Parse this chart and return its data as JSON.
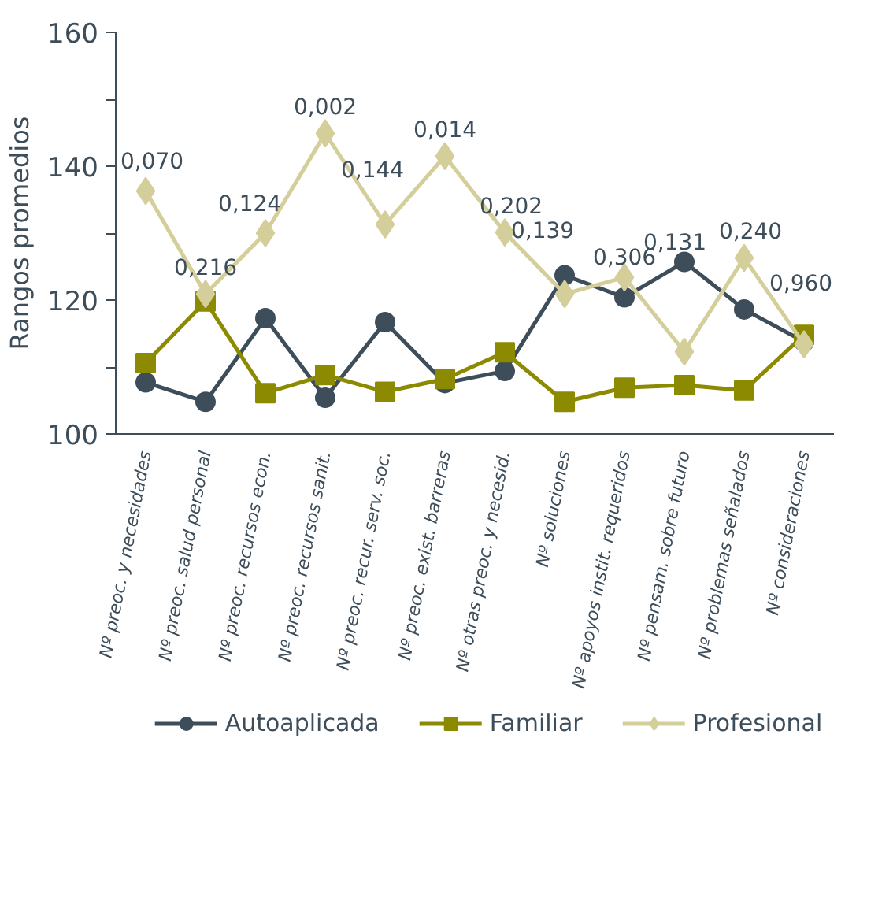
{
  "chart_data": {
    "type": "line",
    "ylabel": "Rangos promedios",
    "categories": [
      "Nº preoc. y necesidades",
      "Nº preoc. salud personal",
      "Nº preoc. recursos econ.",
      "Nº preoc. recursos sanit.",
      "Nº preoc. recur. serv. soc.",
      "Nº preoc. exist. barreras",
      "Nº otras preoc. y necesid.",
      "Nº soluciones",
      "Nº apoyos instit. requeridos",
      "Nº pensam. sobre futuro",
      "Nº problemas señalados",
      "Nº consideraciones"
    ],
    "series": [
      {
        "name": "Autoaplicada",
        "color": "#3d4d5a",
        "marker": "circle",
        "values": [
          107.7,
          104.8,
          117.3,
          105.4,
          116.7,
          107.6,
          109.4,
          123.7,
          120.4,
          125.7,
          118.6,
          113.8
        ]
      },
      {
        "name": "Familiar",
        "color": "#8c8a00",
        "marker": "square",
        "values": [
          110.6,
          119.8,
          106.1,
          108.8,
          106.3,
          108.2,
          112.2,
          104.8,
          106.9,
          107.3,
          106.5,
          114.8
        ]
      },
      {
        "name": "Profesional",
        "color": "#d4cf9a",
        "marker": "diamond",
        "values": [
          136.3,
          120.9,
          130.0,
          144.9,
          131.3,
          141.5,
          130.1,
          120.9,
          123.4,
          112.3,
          126.3,
          113.4
        ]
      }
    ],
    "ylim": [
      100,
      160
    ],
    "yticks": [
      100,
      {
        "value": 110,
        "label": null
      },
      120,
      {
        "value": 130,
        "label": null
      },
      140,
      {
        "value": 150,
        "label": null
      },
      160
    ],
    "grid": false,
    "legend": "bottom",
    "line_style": "solid",
    "annotations": [
      "0,070",
      "0,216",
      "0,124",
      "0,002",
      "0,144",
      "0,014",
      "0,202",
      "0,139",
      "0,306",
      "0,131",
      "0,240",
      "0,960"
    ]
  }
}
